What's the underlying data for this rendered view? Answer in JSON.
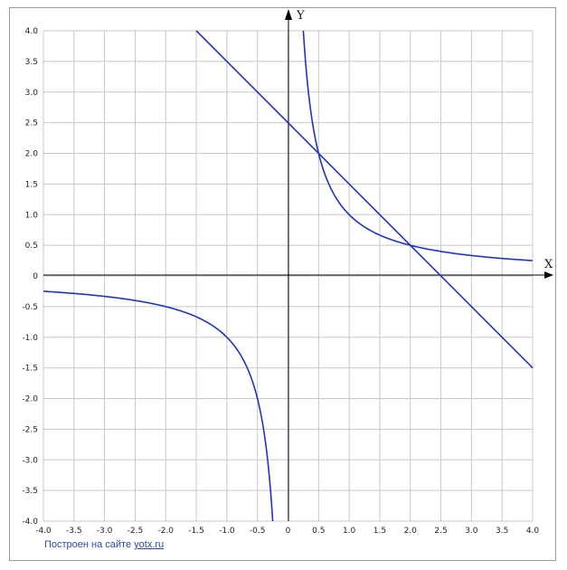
{
  "footer": {
    "text": "Построен на сайте",
    "link": "yotx.ru"
  },
  "chart_data": {
    "type": "line",
    "xlabel": "X",
    "ylabel": "Y",
    "xlim": [
      -4,
      4
    ],
    "ylim": [
      -4,
      4
    ],
    "grid": true,
    "x_ticks": [
      "-4.0",
      "-3.5",
      "-3.0",
      "-2.5",
      "-2.0",
      "-1.5",
      "-1.0",
      "-0.5",
      "0",
      "0.5",
      "1.0",
      "1.5",
      "2.0",
      "2.5",
      "3.0",
      "3.5",
      "4.0"
    ],
    "y_ticks": [
      "4.0",
      "3.5",
      "3.0",
      "2.5",
      "2.0",
      "1.5",
      "1.0",
      "0.5",
      "0",
      "-0.5",
      "-1.0",
      "-1.5",
      "-2.0",
      "-2.5",
      "-3.0",
      "-3.5",
      "-4.0"
    ],
    "series": [
      {
        "color": "#2233bb",
        "points": [
          [
            -1.5,
            4.0
          ],
          [
            4.0,
            -1.5
          ]
        ]
      },
      {
        "color": "#2233bb",
        "points": [
          [
            0.25,
            4.0
          ],
          [
            0.3,
            3.333
          ],
          [
            0.4,
            2.5
          ],
          [
            0.5,
            2.0
          ],
          [
            0.75,
            1.333
          ],
          [
            1.0,
            1.0
          ],
          [
            1.5,
            0.667
          ],
          [
            2.0,
            0.5
          ],
          [
            2.5,
            0.4
          ],
          [
            3.0,
            0.333
          ],
          [
            3.5,
            0.286
          ],
          [
            4.0,
            0.25
          ]
        ]
      },
      {
        "color": "#2233bb",
        "points": [
          [
            -4.0,
            -0.25
          ],
          [
            -3.5,
            -0.286
          ],
          [
            -3.0,
            -0.333
          ],
          [
            -2.5,
            -0.4
          ],
          [
            -2.0,
            -0.5
          ],
          [
            -1.5,
            -0.667
          ],
          [
            -1.0,
            -1.0
          ],
          [
            -0.75,
            -1.333
          ],
          [
            -0.5,
            -2.0
          ],
          [
            -0.4,
            -2.5
          ],
          [
            -0.3,
            -3.333
          ],
          [
            -0.25,
            -4.0
          ]
        ]
      }
    ]
  }
}
